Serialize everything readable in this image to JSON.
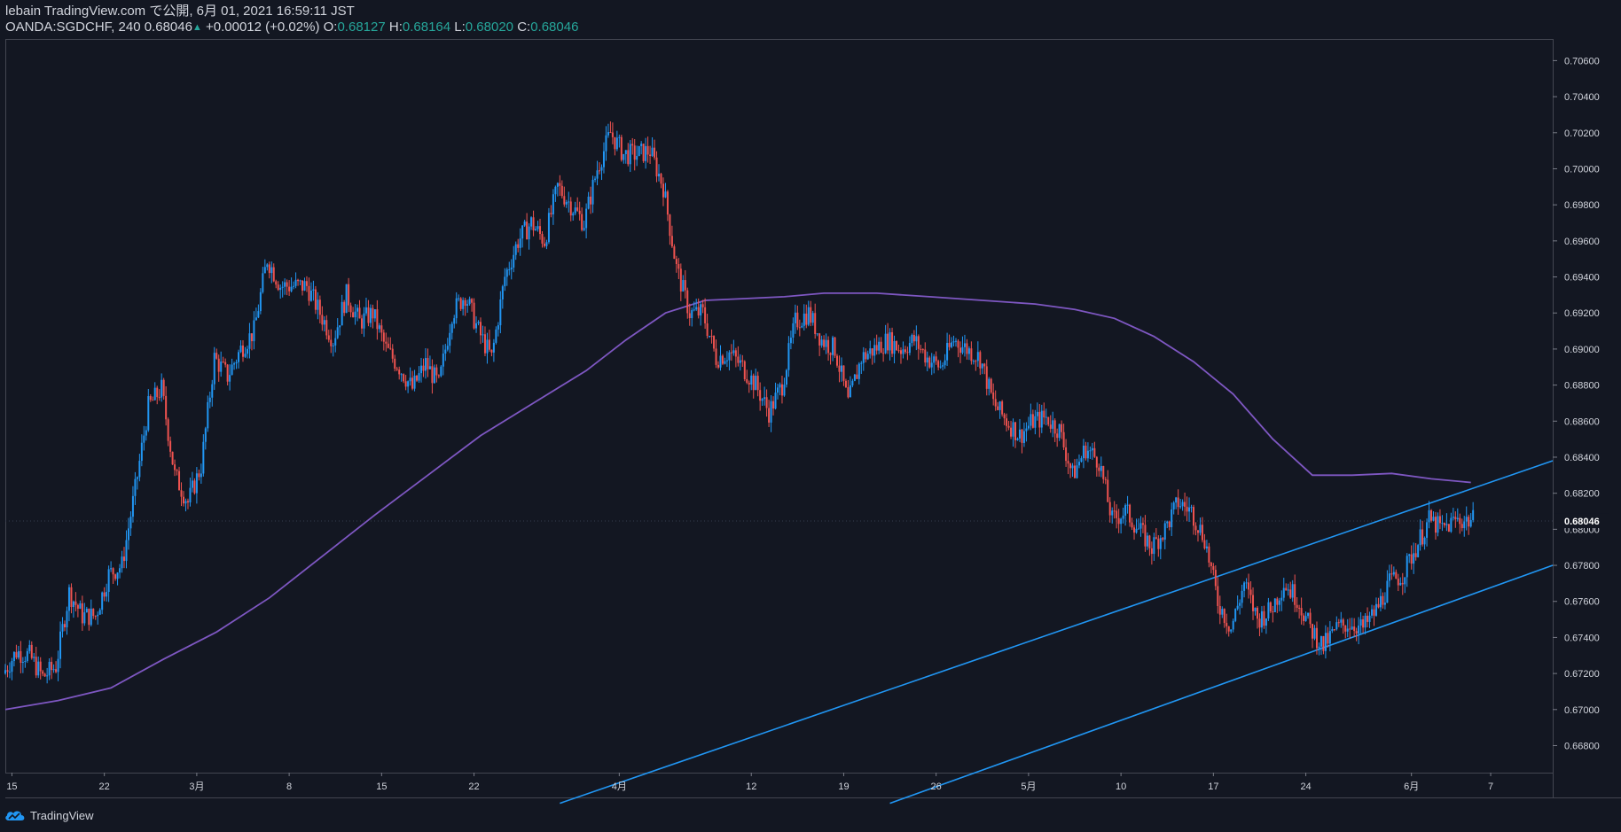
{
  "header": {
    "publisher": "lebain TradingView.com で公開, 6月 01, 2021 16:59:11 JST",
    "symbol": "OANDA:SGDCHF, 240",
    "last": "0.68046",
    "change": "+0.00012 (+0.02%)",
    "o_label": "O:",
    "o_value": "0.68127",
    "h_label": "H:",
    "h_value": "0.68164",
    "l_label": "L:",
    "l_value": "0.68020",
    "c_label": "C:",
    "c_value": "0.68046"
  },
  "footer": {
    "brand": "TradingView",
    "logo_icon": "tradingview-cloud-icon"
  },
  "colors": {
    "background": "#131722",
    "up": "#2196f3",
    "down": "#ef5350",
    "ma": "#7e57c2",
    "trendline": "#2196f3",
    "axis_text": "#d1d4dc",
    "border": "#434651"
  },
  "chart_data": {
    "type": "candlestick",
    "symbol": "OANDA:SGDCHF",
    "interval": "240",
    "ylim": [
      0.6665,
      0.7072
    ],
    "y_ticks": [
      "0.70600",
      "0.70400",
      "0.70200",
      "0.70000",
      "0.69800",
      "0.69600",
      "0.69400",
      "0.69200",
      "0.69000",
      "0.68800",
      "0.68600",
      "0.68400",
      "0.68200",
      "0.68000",
      "0.67800",
      "0.67600",
      "0.67400",
      "0.67200",
      "0.67000",
      "0.66800"
    ],
    "x_ticks": [
      {
        "label": "15",
        "t": 0.5
      },
      {
        "label": "22",
        "t": 7.5
      },
      {
        "label": "3月",
        "t": 14.5
      },
      {
        "label": "8",
        "t": 21.5
      },
      {
        "label": "15",
        "t": 28.5
      },
      {
        "label": "22",
        "t": 35.5
      },
      {
        "label": "4月",
        "t": 46.5
      },
      {
        "label": "12",
        "t": 56.5
      },
      {
        "label": "19",
        "t": 63.5
      },
      {
        "label": "26",
        "t": 70.5
      },
      {
        "label": "5月",
        "t": 77.5
      },
      {
        "label": "10",
        "t": 84.5
      },
      {
        "label": "17",
        "t": 91.5
      },
      {
        "label": "24",
        "t": 98.5
      },
      {
        "label": "6月",
        "t": 106.5
      },
      {
        "label": "7",
        "t": 112.5
      }
    ],
    "x_range": [
      0,
      117.2
    ],
    "last_price": {
      "value": 0.68046,
      "label": "0.68046"
    },
    "price_path": [
      [
        0,
        0.672
      ],
      [
        1,
        0.6732
      ],
      [
        2,
        0.673
      ],
      [
        3,
        0.6718
      ],
      [
        4,
        0.6724
      ],
      [
        5,
        0.6765
      ],
      [
        6,
        0.6752
      ],
      [
        7,
        0.6752
      ],
      [
        8,
        0.6775
      ],
      [
        9,
        0.678
      ],
      [
        10,
        0.6822
      ],
      [
        11,
        0.6868
      ],
      [
        12,
        0.6878
      ],
      [
        13,
        0.683
      ],
      [
        14,
        0.6815
      ],
      [
        15,
        0.6835
      ],
      [
        16,
        0.6895
      ],
      [
        17,
        0.6885
      ],
      [
        18,
        0.69
      ],
      [
        19,
        0.691
      ],
      [
        20,
        0.695
      ],
      [
        21,
        0.6935
      ],
      [
        22,
        0.6935
      ],
      [
        23,
        0.6935
      ],
      [
        24,
        0.692
      ],
      [
        25,
        0.6905
      ],
      [
        26,
        0.693
      ],
      [
        27,
        0.6915
      ],
      [
        28,
        0.692
      ],
      [
        29,
        0.69
      ],
      [
        30,
        0.689
      ],
      [
        31,
        0.6878
      ],
      [
        32,
        0.6892
      ],
      [
        33,
        0.688
      ],
      [
        34,
        0.692
      ],
      [
        35,
        0.693
      ],
      [
        36,
        0.691
      ],
      [
        37,
        0.6895
      ],
      [
        38,
        0.694
      ],
      [
        39,
        0.696
      ],
      [
        40,
        0.697
      ],
      [
        41,
        0.696
      ],
      [
        42,
        0.699
      ],
      [
        43,
        0.698
      ],
      [
        44,
        0.697
      ],
      [
        45,
        0.7
      ],
      [
        46,
        0.702
      ],
      [
        47,
        0.7008
      ],
      [
        48,
        0.7008
      ],
      [
        49,
        0.701
      ],
      [
        50,
        0.699
      ],
      [
        51,
        0.6945
      ],
      [
        52,
        0.692
      ],
      [
        53,
        0.692
      ],
      [
        54,
        0.6895
      ],
      [
        55,
        0.6898
      ],
      [
        56,
        0.689
      ],
      [
        57,
        0.688
      ],
      [
        58,
        0.6865
      ],
      [
        59,
        0.688
      ],
      [
        60,
        0.6915
      ],
      [
        61,
        0.692
      ],
      [
        62,
        0.6905
      ],
      [
        63,
        0.69
      ],
      [
        64,
        0.687
      ],
      [
        65,
        0.6895
      ],
      [
        66,
        0.69
      ],
      [
        67,
        0.6905
      ],
      [
        68,
        0.69
      ],
      [
        69,
        0.6905
      ],
      [
        70,
        0.6895
      ],
      [
        71,
        0.689
      ],
      [
        72,
        0.6905
      ],
      [
        73,
        0.69
      ],
      [
        74,
        0.6895
      ],
      [
        75,
        0.687
      ],
      [
        76,
        0.686
      ],
      [
        77,
        0.6852
      ],
      [
        78,
        0.686
      ],
      [
        79,
        0.6862
      ],
      [
        80,
        0.6855
      ],
      [
        81,
        0.683
      ],
      [
        82,
        0.6845
      ],
      [
        83,
        0.6838
      ],
      [
        84,
        0.6805
      ],
      [
        85,
        0.681
      ],
      [
        86,
        0.68
      ],
      [
        87,
        0.679
      ],
      [
        88,
        0.68
      ],
      [
        89,
        0.6815
      ],
      [
        90,
        0.681
      ],
      [
        91,
        0.6795
      ],
      [
        92,
        0.676
      ],
      [
        93,
        0.6745
      ],
      [
        94,
        0.677
      ],
      [
        95,
        0.675
      ],
      [
        96,
        0.6755
      ],
      [
        97,
        0.677
      ],
      [
        98,
        0.6762
      ],
      [
        99,
        0.6745
      ],
      [
        100,
        0.6735
      ],
      [
        101,
        0.6745
      ],
      [
        102,
        0.6748
      ],
      [
        103,
        0.6745
      ],
      [
        104,
        0.6755
      ],
      [
        105,
        0.677
      ],
      [
        106,
        0.6775
      ],
      [
        107,
        0.679
      ],
      [
        108,
        0.6805
      ],
      [
        109,
        0.68
      ],
      [
        110,
        0.6805
      ],
      [
        111,
        0.6805
      ]
    ],
    "moving_average": [
      [
        0,
        0.67
      ],
      [
        4,
        0.6705
      ],
      [
        8,
        0.6712
      ],
      [
        12,
        0.6728
      ],
      [
        16,
        0.6743
      ],
      [
        20,
        0.6762
      ],
      [
        24,
        0.6785
      ],
      [
        28,
        0.6808
      ],
      [
        32,
        0.683
      ],
      [
        36,
        0.6852
      ],
      [
        40,
        0.687
      ],
      [
        44,
        0.6888
      ],
      [
        47,
        0.6905
      ],
      [
        50,
        0.692
      ],
      [
        53,
        0.6927
      ],
      [
        56,
        0.6928
      ],
      [
        59,
        0.6929
      ],
      [
        62,
        0.6931
      ],
      [
        66,
        0.6931
      ],
      [
        70,
        0.6929
      ],
      [
        74,
        0.6927
      ],
      [
        78,
        0.6925
      ],
      [
        81,
        0.6922
      ],
      [
        84,
        0.6917
      ],
      [
        87,
        0.6907
      ],
      [
        90,
        0.6893
      ],
      [
        93,
        0.6875
      ],
      [
        96,
        0.685
      ],
      [
        99,
        0.683
      ],
      [
        102,
        0.683
      ],
      [
        105,
        0.6831
      ],
      [
        108,
        0.6828
      ],
      [
        111,
        0.6826
      ]
    ],
    "trendlines": [
      {
        "name": "channel-upper",
        "points": [
          [
            42,
            0.6648
          ],
          [
            117.2,
            0.6838
          ]
        ]
      },
      {
        "name": "channel-lower",
        "points": [
          [
            67,
            0.6648
          ],
          [
            117.2,
            0.678
          ]
        ]
      }
    ]
  }
}
